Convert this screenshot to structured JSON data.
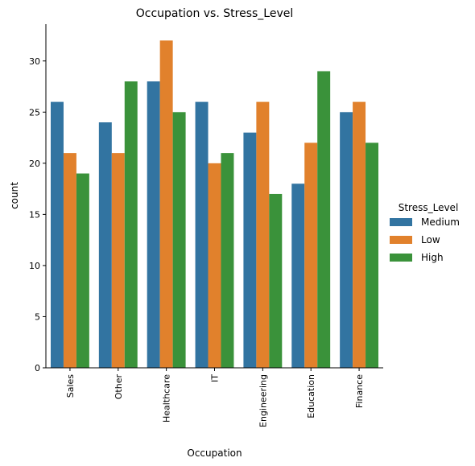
{
  "chart_data": {
    "type": "bar",
    "title": "Occupation vs. Stress_Level",
    "xlabel": "Occupation",
    "ylabel": "count",
    "categories": [
      "Sales",
      "Other",
      "Healthcare",
      "IT",
      "Engineering",
      "Education",
      "Finance"
    ],
    "series": [
      {
        "name": "Medium",
        "color": "#3274a1",
        "values": [
          26,
          24,
          28,
          26,
          23,
          18,
          25
        ]
      },
      {
        "name": "Low",
        "color": "#e1812c",
        "values": [
          21,
          21,
          32,
          20,
          26,
          22,
          26
        ]
      },
      {
        "name": "High",
        "color": "#3a923a",
        "values": [
          19,
          28,
          25,
          21,
          17,
          29,
          22
        ]
      }
    ],
    "ylim": [
      0,
      33.6
    ],
    "yticks": [
      0,
      5,
      10,
      15,
      20,
      25,
      30
    ],
    "legend_title": "Stress_Level",
    "legend_position": "right",
    "grid": false
  }
}
